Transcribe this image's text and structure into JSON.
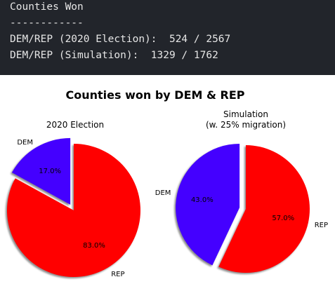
{
  "console": {
    "lines": [
      "Counties Won",
      "------------",
      "DEM/REP (2020 Election):  524 / 2567",
      "DEM/REP (Simulation):  1329 / 1762"
    ]
  },
  "chart_data": {
    "title": "Counties won by DEM & REP",
    "charts": [
      {
        "type": "pie",
        "title": [
          "2020 Election"
        ],
        "labels": [
          "DEM",
          "REP"
        ],
        "values": [
          17.0,
          83.0
        ],
        "pct_labels": [
          "17.0%",
          "83.0%"
        ],
        "colors": [
          "#4400ff",
          "#ff0000"
        ],
        "explode": "DEM",
        "shadow": true
      },
      {
        "type": "pie",
        "title": [
          "Simulation",
          "(w. 25% migration)"
        ],
        "labels": [
          "DEM",
          "REP"
        ],
        "values": [
          43.0,
          57.0
        ],
        "pct_labels": [
          "43.0%",
          "57.0%"
        ],
        "colors": [
          "#4400ff",
          "#ff0000"
        ],
        "explode": "DEM",
        "shadow": true
      }
    ]
  }
}
